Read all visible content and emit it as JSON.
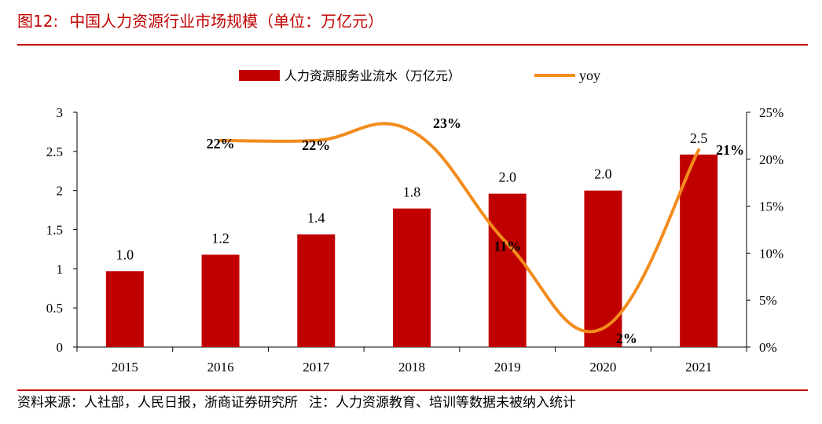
{
  "header": {
    "figure_number": "图12:",
    "title": "中国人力资源行业市场规模（单位：万亿元）"
  },
  "footer": {
    "source": "资料来源：人社部，人民日报，浙商证券研究所",
    "note": "注：人力资源教育、培训等数据未被纳入统计"
  },
  "colors": {
    "accent": "#c00000",
    "bar": "#c00000",
    "line": "#f28c1c"
  },
  "chart_data": {
    "type": "bar",
    "categories": [
      "2015",
      "2016",
      "2017",
      "2018",
      "2019",
      "2020",
      "2021"
    ],
    "series": [
      {
        "name": "人力资源服务业流水（万亿元）",
        "type": "bar",
        "axis": "left",
        "values": [
          0.97,
          1.18,
          1.44,
          1.77,
          1.96,
          2.0,
          2.46
        ],
        "labels": [
          "1.0",
          "1.2",
          "1.4",
          "1.8",
          "2.0",
          "2.0",
          "2.5"
        ]
      },
      {
        "name": "yoy",
        "type": "line",
        "axis": "right",
        "values": [
          null,
          22,
          22,
          23,
          11,
          2,
          21
        ],
        "labels": [
          "",
          "22%",
          "22%",
          "23%",
          "11%",
          "2%",
          "21%"
        ]
      }
    ],
    "y_left": {
      "ylim": [
        0,
        3
      ],
      "ticks": [
        0,
        0.5,
        1,
        1.5,
        2,
        2.5,
        3
      ],
      "tick_labels": [
        "0",
        "0.5",
        "1",
        "1.5",
        "2",
        "2.5",
        "3"
      ]
    },
    "y_right": {
      "ylim": [
        0,
        25
      ],
      "ticks": [
        0,
        5,
        10,
        15,
        20,
        25
      ],
      "tick_labels": [
        "0%",
        "5%",
        "10%",
        "15%",
        "20%",
        "25%"
      ]
    },
    "grid": false,
    "legend_position": "top-center"
  }
}
